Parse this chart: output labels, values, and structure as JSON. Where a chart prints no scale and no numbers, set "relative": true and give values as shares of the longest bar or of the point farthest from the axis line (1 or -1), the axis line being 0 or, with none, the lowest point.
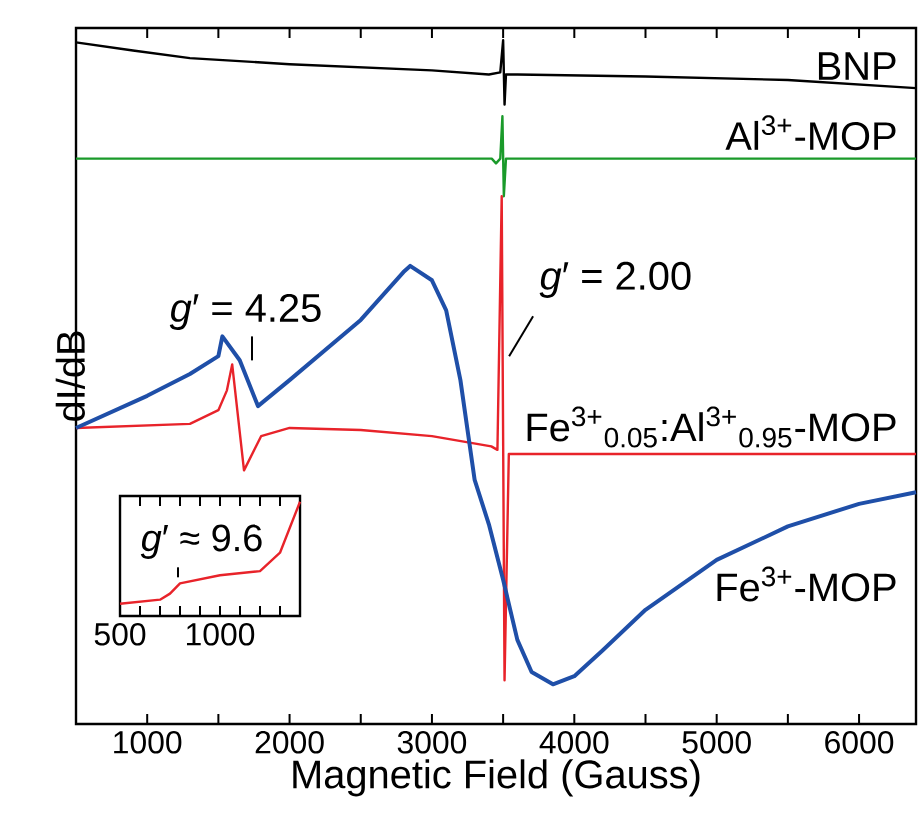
{
  "chart_data": [
    {
      "type": "line",
      "relative": true,
      "xlabel": "Magnetic Field (Gauss)",
      "ylabel": "dI/dB",
      "xlim": [
        500,
        6400
      ],
      "xticks": [
        1000,
        {
          "value": 1500,
          "label": null
        },
        2000,
        {
          "value": 2500,
          "label": null
        },
        3000,
        {
          "value": 3500,
          "label": null
        },
        4000,
        {
          "value": 4500,
          "label": null
        },
        5000,
        {
          "value": 5500,
          "label": null
        },
        6000
      ],
      "series": [
        {
          "name": "BNP",
          "color": "#000000",
          "x": [
            500,
            900,
            1300,
            2000,
            3000,
            3400,
            3480,
            3500,
            3510,
            3520,
            3600,
            4500,
            5500,
            6400
          ],
          "values": [
            0.997,
            0.985,
            0.974,
            0.965,
            0.956,
            0.95,
            0.953,
            1.0,
            0.906,
            0.95,
            0.95,
            0.947,
            0.942,
            0.93
          ]
        },
        {
          "name": "Al$^{3+}$-MOP",
          "color": "#1a9a2a",
          "x": [
            500,
            2000,
            3000,
            3420,
            3450,
            3480,
            3495,
            3505,
            3520,
            3560,
            4500,
            6400
          ],
          "values": [
            0.827,
            0.827,
            0.827,
            0.827,
            0.82,
            0.827,
            0.889,
            0.772,
            0.827,
            0.827,
            0.827,
            0.827
          ]
        },
        {
          "name": "Fe$^{3+}$$_{0.05}$:Al$^{3+}$$_{0.95}$-MOP",
          "color": "#e8232a",
          "x": [
            500,
            1300,
            1500,
            1560,
            1597,
            1680,
            1800,
            2000,
            2500,
            3000,
            3417,
            3460,
            3490,
            3510,
            3540,
            4500,
            6400
          ],
          "values": [
            0.433,
            0.439,
            0.459,
            0.488,
            0.526,
            0.371,
            0.421,
            0.433,
            0.43,
            0.421,
            0.406,
            0.401,
            0.772,
            0.064,
            0.395,
            0.395,
            0.395
          ]
        },
        {
          "name": "Fe$^{3+}$-MOP",
          "color": "#1f4fa8",
          "x": [
            500,
            1000,
            1300,
            1500,
            1528,
            1650,
            1778,
            2000,
            2500,
            2800,
            2847,
            3000,
            3100,
            3200,
            3300,
            3400,
            3500,
            3600,
            3700,
            3850,
            4000,
            4200,
            4500,
            5000,
            5500,
            6000,
            6400
          ],
          "values": [
            0.433,
            0.48,
            0.512,
            0.538,
            0.567,
            0.532,
            0.465,
            0.503,
            0.591,
            0.661,
            0.67,
            0.649,
            0.605,
            0.503,
            0.357,
            0.292,
            0.211,
            0.123,
            0.076,
            0.058,
            0.07,
            0.108,
            0.167,
            0.24,
            0.289,
            0.322,
            0.339
          ]
        }
      ],
      "annotations": [
        {
          "text": "*g*′ = 4.25",
          "x": 1736,
          "y": 0.526
        },
        {
          "text": "*g*′ = 2.00",
          "x": 3542,
          "y": 0.532
        }
      ]
    },
    {
      "type": "line",
      "relative": true,
      "xlim": [
        500,
        1400
      ],
      "xticks": [
        500,
        {
          "value": 600,
          "label": null
        },
        {
          "value": 700,
          "label": null
        },
        {
          "value": 800,
          "label": null
        },
        {
          "value": 900,
          "label": null
        },
        1000,
        {
          "value": 1100,
          "label": null
        },
        {
          "value": 1200,
          "label": null
        },
        {
          "value": 1300,
          "label": null
        },
        {
          "value": 1400,
          "label": null
        }
      ],
      "series": [
        {
          "color": "#e8232a",
          "x": [
            500,
            700,
            750,
            800,
            1000,
            1200,
            1300,
            1400
          ],
          "values": [
            0.107,
            0.143,
            0.196,
            0.286,
            0.357,
            0.393,
            0.554,
            1.0
          ]
        }
      ],
      "annotations": [
        {
          "text": "*g*′ ≈ 9.6",
          "x": 790,
          "y": 0.286
        }
      ]
    }
  ]
}
